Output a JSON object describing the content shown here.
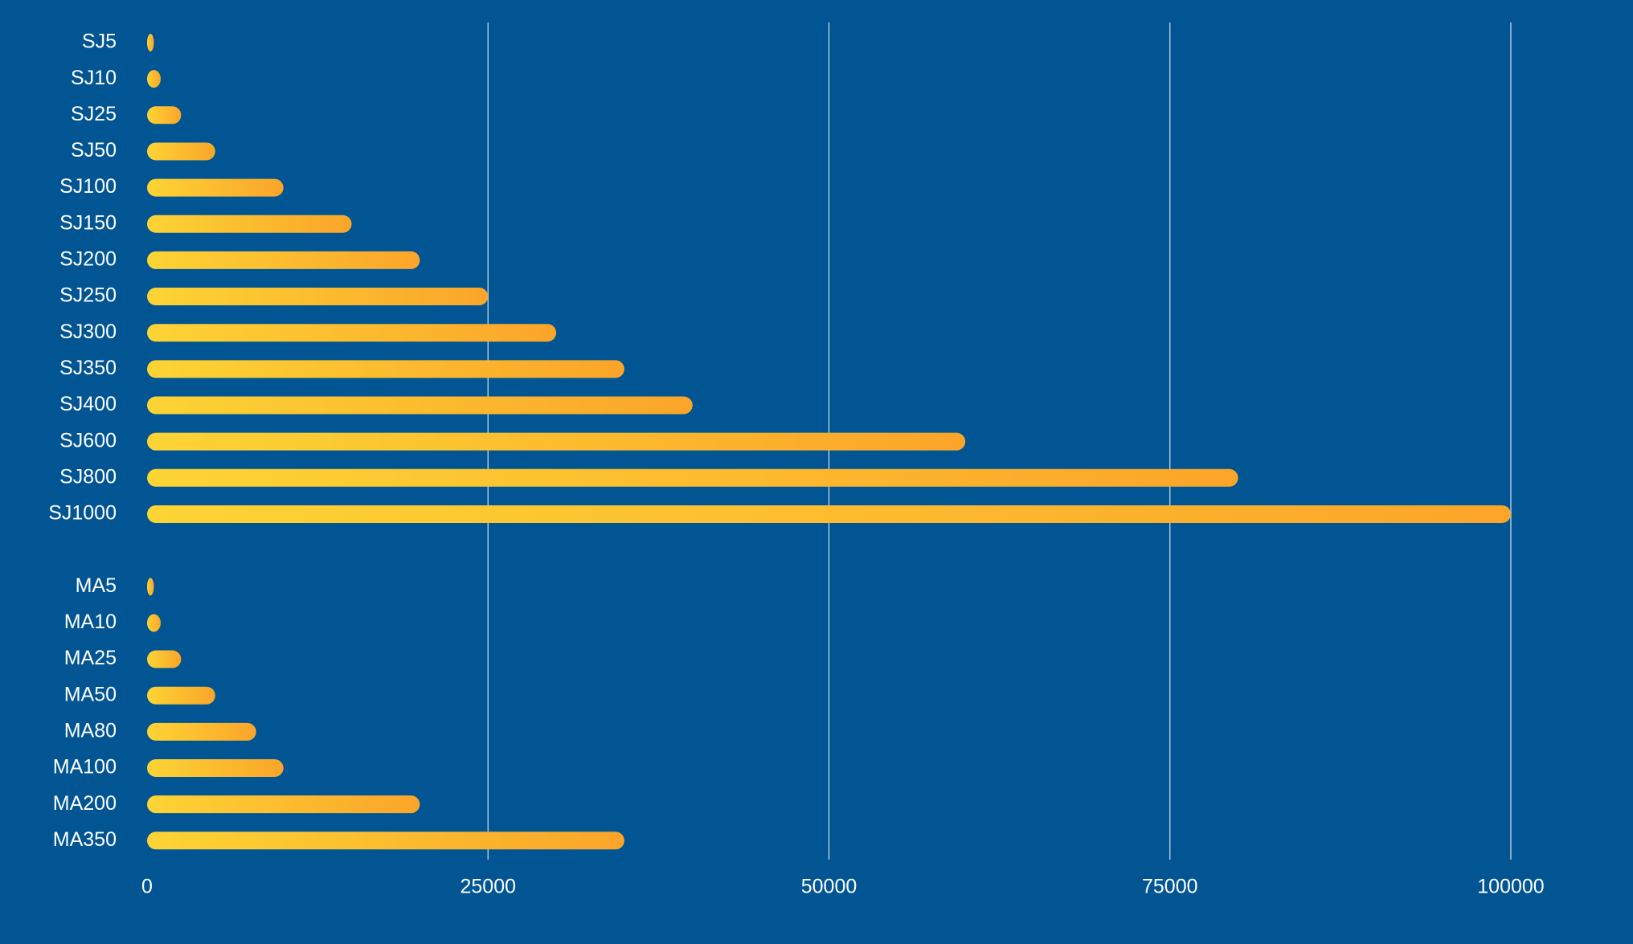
{
  "chart_data": {
    "type": "bar",
    "orientation": "horizontal",
    "title": "",
    "xlabel": "",
    "ylabel": "",
    "xlim": [
      0,
      100000
    ],
    "xticks": [
      0,
      25000,
      50000,
      75000,
      100000
    ],
    "grid": "vertical",
    "legend": "none",
    "colors": {
      "background": "#005592",
      "bar_start": "#fcd434",
      "bar_end": "#fba52a",
      "gridline": "#c9d6e3",
      "text": "#ffffff"
    },
    "groups": [
      {
        "name": "SJ",
        "categories": [
          "SJ5",
          "SJ10",
          "SJ25",
          "SJ50",
          "SJ100",
          "SJ150",
          "SJ200",
          "SJ250",
          "SJ300",
          "SJ350",
          "SJ400",
          "SJ600",
          "SJ800",
          "SJ1000"
        ],
        "values": [
          500,
          1000,
          2500,
          5000,
          10000,
          15000,
          20000,
          25000,
          30000,
          35000,
          40000,
          60000,
          80000,
          100000
        ]
      },
      {
        "name": "MA",
        "categories": [
          "MA5",
          "MA10",
          "MA25",
          "MA50",
          "MA80",
          "MA100",
          "MA200",
          "MA350"
        ],
        "values": [
          500,
          1000,
          2500,
          5000,
          8000,
          10000,
          20000,
          35000
        ]
      }
    ]
  }
}
